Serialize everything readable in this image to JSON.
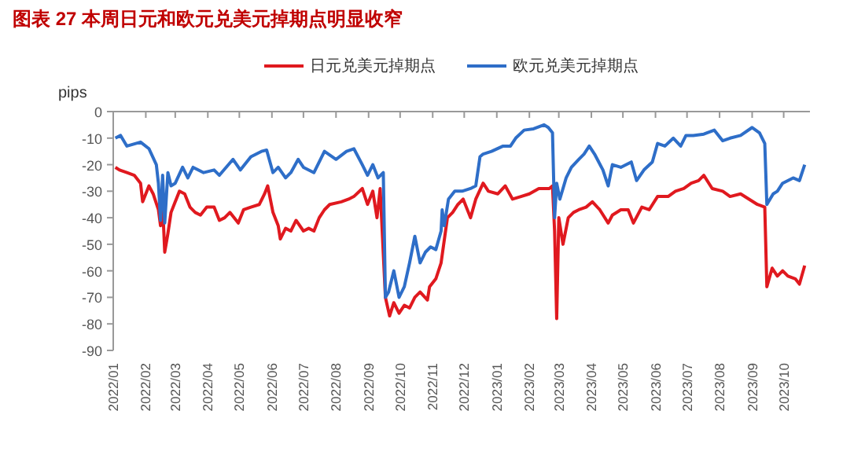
{
  "chart_data": {
    "type": "line",
    "title": "图表 27   本周日元和欧元兑美元掉期点明显收窄",
    "ylabel": "pips",
    "xlim": [
      "2022-01-01",
      "2023-10-26"
    ],
    "ylim": [
      -90,
      0
    ],
    "yticks": [
      0,
      -10,
      -20,
      -30,
      -40,
      -50,
      -60,
      -70,
      -80,
      -90
    ],
    "xticks": [
      {
        "value": "2022-01-01",
        "label": "2022/01"
      },
      {
        "value": "2022-02-01",
        "label": "2022/02"
      },
      {
        "value": "2022-03-01",
        "label": "2022/03"
      },
      {
        "value": "2022-04-01",
        "label": "2022/04"
      },
      {
        "value": "2022-05-01",
        "label": "2022/05"
      },
      {
        "value": "2022-06-01",
        "label": "2022/06"
      },
      {
        "value": "2022-07-01",
        "label": "2022/07"
      },
      {
        "value": "2022-08-01",
        "label": "2022/08"
      },
      {
        "value": "2022-09-01",
        "label": "2022/09"
      },
      {
        "value": "2022-10-01",
        "label": "2022/10"
      },
      {
        "value": "2022-11-01",
        "label": "2022/11"
      },
      {
        "value": "2022-12-01",
        "label": "2022/12"
      },
      {
        "value": "2023-01-01",
        "label": "2023/01"
      },
      {
        "value": "2023-02-01",
        "label": "2023/02"
      },
      {
        "value": "2023-03-01",
        "label": "2023/03"
      },
      {
        "value": "2023-04-01",
        "label": "2023/04"
      },
      {
        "value": "2023-05-01",
        "label": "2023/05"
      },
      {
        "value": "2023-06-01",
        "label": "2023/06"
      },
      {
        "value": "2023-07-01",
        "label": "2023/07"
      },
      {
        "value": "2023-08-01",
        "label": "2023/08"
      },
      {
        "value": "2023-09-01",
        "label": "2023/09"
      },
      {
        "value": "2023-10-01",
        "label": "2023/10"
      }
    ],
    "grid": false,
    "legend": "top",
    "line_style": "solid",
    "series": [
      {
        "name": "日元兑美元掉期点",
        "color": "#e0191f",
        "x": [
          "2022-01-03",
          "2022-01-07",
          "2022-01-14",
          "2022-01-21",
          "2022-01-27",
          "2022-01-29",
          "2022-02-04",
          "2022-02-08",
          "2022-02-13",
          "2022-02-15",
          "2022-02-17",
          "2022-02-19",
          "2022-02-22",
          "2022-02-25",
          "2022-03-01",
          "2022-03-05",
          "2022-03-10",
          "2022-03-15",
          "2022-03-20",
          "2022-03-25",
          "2022-03-31",
          "2022-04-07",
          "2022-04-12",
          "2022-04-17",
          "2022-04-22",
          "2022-04-30",
          "2022-05-05",
          "2022-05-12",
          "2022-05-20",
          "2022-05-25",
          "2022-05-28",
          "2022-06-02",
          "2022-06-07",
          "2022-06-09",
          "2022-06-14",
          "2022-06-19",
          "2022-06-24",
          "2022-07-01",
          "2022-07-06",
          "2022-07-11",
          "2022-07-16",
          "2022-07-21",
          "2022-07-26",
          "2022-08-06",
          "2022-08-13",
          "2022-08-18",
          "2022-08-26",
          "2022-08-31",
          "2022-09-05",
          "2022-09-09",
          "2022-09-12",
          "2022-09-17",
          "2022-09-21",
          "2022-09-25",
          "2022-09-30",
          "2022-10-05",
          "2022-10-10",
          "2022-10-15",
          "2022-10-20",
          "2022-10-27",
          "2022-10-29",
          "2022-11-04",
          "2022-11-09",
          "2022-11-15",
          "2022-11-20",
          "2022-11-25",
          "2022-11-30",
          "2022-12-07",
          "2022-12-12",
          "2022-12-19",
          "2022-12-24",
          "2023-01-02",
          "2023-01-09",
          "2023-01-16",
          "2023-01-24",
          "2023-02-01",
          "2023-02-10",
          "2023-02-20",
          "2023-02-23",
          "2023-02-25",
          "2023-02-27",
          "2023-03-01",
          "2023-03-05",
          "2023-03-10",
          "2023-03-15",
          "2023-03-20",
          "2023-03-27",
          "2023-04-02",
          "2023-04-09",
          "2023-04-17",
          "2023-04-21",
          "2023-04-29",
          "2023-05-06",
          "2023-05-11",
          "2023-05-19",
          "2023-05-26",
          "2023-06-03",
          "2023-06-13",
          "2023-06-20",
          "2023-06-28",
          "2023-07-05",
          "2023-07-12",
          "2023-07-17",
          "2023-07-25",
          "2023-08-04",
          "2023-08-11",
          "2023-08-21",
          "2023-08-29",
          "2023-09-06",
          "2023-09-13",
          "2023-09-15",
          "2023-09-20",
          "2023-09-25",
          "2023-09-30",
          "2023-10-05",
          "2023-10-12",
          "2023-10-16",
          "2023-10-21"
        ],
        "values": [
          -21,
          -22,
          -23,
          -24,
          -27,
          -34,
          -28,
          -31,
          -37,
          -43,
          -35,
          -53,
          -46,
          -38,
          -34,
          -30,
          -31,
          -36,
          -38,
          -39,
          -36,
          -36,
          -41,
          -40,
          -38,
          -42,
          -37,
          -36,
          -35,
          -31,
          -28,
          -38,
          -43,
          -48,
          -44,
          -45,
          -41,
          -45,
          -44,
          -45,
          -40,
          -37,
          -35,
          -34,
          -33,
          -32,
          -29,
          -35,
          -30,
          -40,
          -29,
          -70,
          -77,
          -72,
          -76,
          -73,
          -74,
          -70,
          -68,
          -71,
          -66,
          -63,
          -57,
          -40,
          -38,
          -35,
          -33,
          -40,
          -33,
          -27,
          -30,
          -31,
          -28,
          -33,
          -32,
          -31,
          -29,
          -29,
          -28,
          -45,
          -78,
          -40,
          -50,
          -40,
          -38,
          -37,
          -36,
          -34,
          -37,
          -42,
          -39,
          -37,
          -37,
          -42,
          -36,
          -37,
          -32,
          -32,
          -30,
          -29,
          -27,
          -26,
          -24,
          -29,
          -30,
          -32,
          -31,
          -33,
          -35,
          -36,
          -66,
          -59,
          -62,
          -60,
          -62,
          -63,
          -65,
          -58
        ]
      },
      {
        "name": "欧元兑美元掉期点",
        "color": "#2e6ec8",
        "x": [
          "2022-01-03",
          "2022-01-08",
          "2022-01-14",
          "2022-01-27",
          "2022-02-04",
          "2022-02-11",
          "2022-02-13",
          "2022-02-15",
          "2022-02-17",
          "2022-02-19",
          "2022-02-22",
          "2022-02-25",
          "2022-03-01",
          "2022-03-08",
          "2022-03-13",
          "2022-03-18",
          "2022-03-28",
          "2022-04-07",
          "2022-04-12",
          "2022-04-25",
          "2022-05-02",
          "2022-05-12",
          "2022-05-22",
          "2022-05-27",
          "2022-06-02",
          "2022-06-07",
          "2022-06-14",
          "2022-06-19",
          "2022-06-26",
          "2022-07-01",
          "2022-07-11",
          "2022-07-21",
          "2022-08-01",
          "2022-08-11",
          "2022-08-18",
          "2022-08-26",
          "2022-08-31",
          "2022-09-05",
          "2022-09-10",
          "2022-09-15",
          "2022-09-17",
          "2022-09-20",
          "2022-09-25",
          "2022-09-30",
          "2022-10-05",
          "2022-10-10",
          "2022-10-15",
          "2022-10-20",
          "2022-10-25",
          "2022-10-30",
          "2022-11-04",
          "2022-11-09",
          "2022-11-10",
          "2022-11-12",
          "2022-11-16",
          "2022-11-22",
          "2022-11-29",
          "2022-12-07",
          "2022-12-12",
          "2022-12-16",
          "2022-12-19",
          "2022-12-27",
          "2023-01-07",
          "2023-01-14",
          "2023-01-19",
          "2023-01-27",
          "2023-02-05",
          "2023-02-15",
          "2023-02-19",
          "2023-02-23",
          "2023-02-25",
          "2023-02-27",
          "2023-03-02",
          "2023-03-08",
          "2023-03-13",
          "2023-03-20",
          "2023-03-25",
          "2023-03-30",
          "2023-04-04",
          "2023-04-12",
          "2023-04-17",
          "2023-04-21",
          "2023-04-29",
          "2023-05-09",
          "2023-05-14",
          "2023-05-21",
          "2023-05-29",
          "2023-06-03",
          "2023-06-10",
          "2023-06-18",
          "2023-06-25",
          "2023-06-30",
          "2023-07-07",
          "2023-07-17",
          "2023-07-27",
          "2023-08-04",
          "2023-08-11",
          "2023-08-21",
          "2023-09-01",
          "2023-09-08",
          "2023-09-13",
          "2023-09-15",
          "2023-09-21",
          "2023-09-25",
          "2023-09-30",
          "2023-10-10",
          "2023-10-16",
          "2023-10-21"
        ],
        "values": [
          -10,
          -9,
          -13,
          -11.5,
          -14,
          -20,
          -27,
          -41,
          -24,
          -42,
          -23,
          -28,
          -27,
          -21,
          -25,
          -21,
          -23,
          -22,
          -24,
          -18,
          -22,
          -17,
          -15,
          -14.5,
          -23,
          -21,
          -25,
          -23,
          -18,
          -21,
          -23,
          -15,
          -18,
          -15,
          -14,
          -20,
          -24,
          -20,
          -25,
          -23,
          -70,
          -68,
          -60,
          -70,
          -66,
          -57,
          -47,
          -57,
          -53,
          -51,
          -52,
          -45,
          -37,
          -43,
          -33,
          -30,
          -30,
          -29,
          -28,
          -17,
          -16,
          -15,
          -13,
          -13,
          -10,
          -7,
          -6.5,
          -5,
          -6,
          -8,
          -40,
          -27,
          -33,
          -25,
          -21,
          -18,
          -16,
          -13,
          -16,
          -22,
          -28,
          -20,
          -21,
          -19,
          -26,
          -22,
          -19,
          -12,
          -13,
          -10,
          -13,
          -9,
          -9,
          -8.5,
          -7,
          -11,
          -10,
          -9,
          -6,
          -8,
          -12,
          -35,
          -31,
          -30,
          -27,
          -25,
          -26,
          -20
        ]
      }
    ]
  }
}
